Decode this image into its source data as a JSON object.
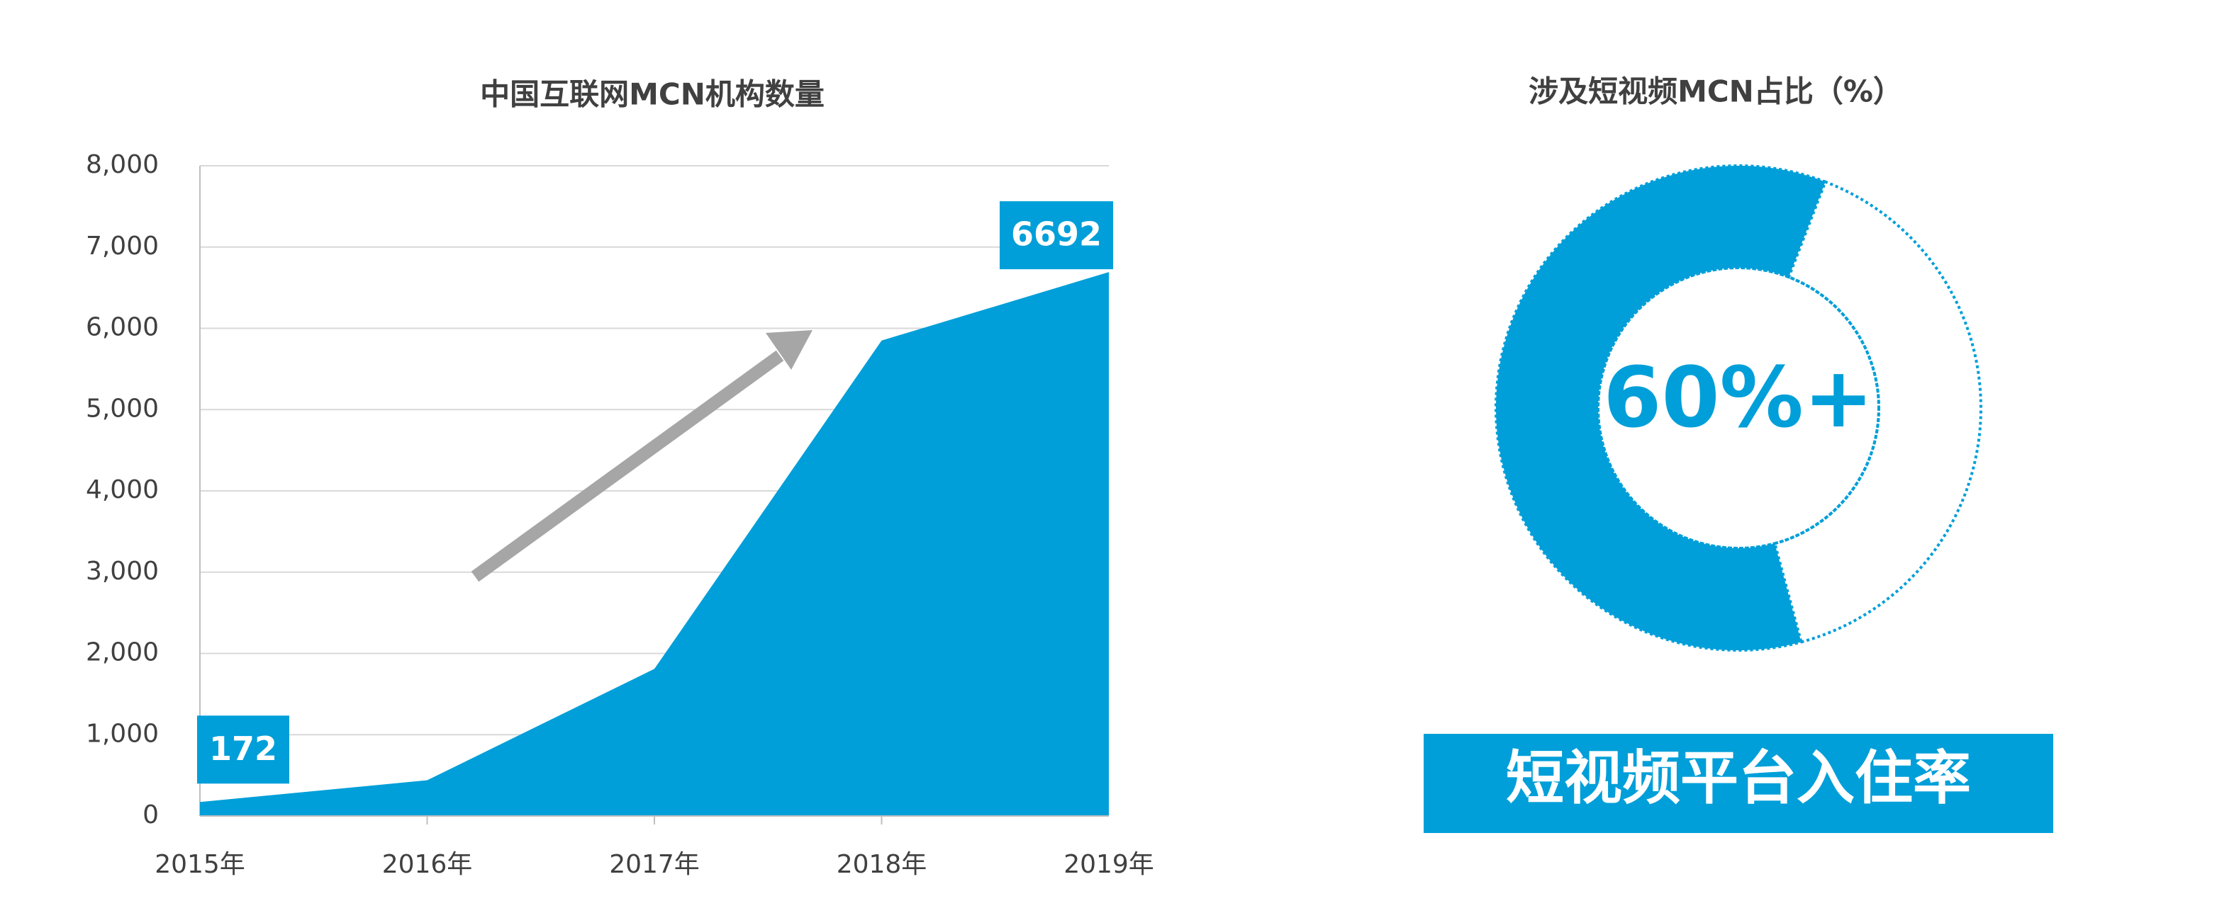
{
  "chart_data": [
    {
      "type": "area",
      "title": "中国互联网MCN机构数量",
      "categories": [
        "2015年",
        "2016年",
        "2017年",
        "2018年",
        "2019年"
      ],
      "values": [
        172,
        440,
        1810,
        5850,
        6692
      ],
      "value_labels": [
        "172",
        null,
        null,
        null,
        "6692"
      ],
      "color": "#009fd9",
      "ylim": [
        0,
        8000
      ],
      "yticks": [
        0,
        {
          "value": 1000,
          "label": "1,000"
        },
        {
          "value": 2000,
          "label": "2,000"
        },
        {
          "value": 3000,
          "label": "3,000"
        },
        {
          "value": 4000,
          "label": "4,000"
        },
        {
          "value": 5000,
          "label": "5,000"
        },
        {
          "value": 6000,
          "label": "6,000"
        },
        {
          "value": 7000,
          "label": "7,000"
        },
        {
          "value": 8000,
          "label": "8,000"
        }
      ],
      "grid": true
    },
    {
      "type": "donut",
      "title": "涉及短视频MCN占比（%）",
      "values": [
        60,
        40
      ],
      "value_labels": [
        "60%+",
        null
      ],
      "colors": [
        "#009fd9",
        "#ffffff"
      ],
      "caption": "短视频平台入住率"
    }
  ]
}
